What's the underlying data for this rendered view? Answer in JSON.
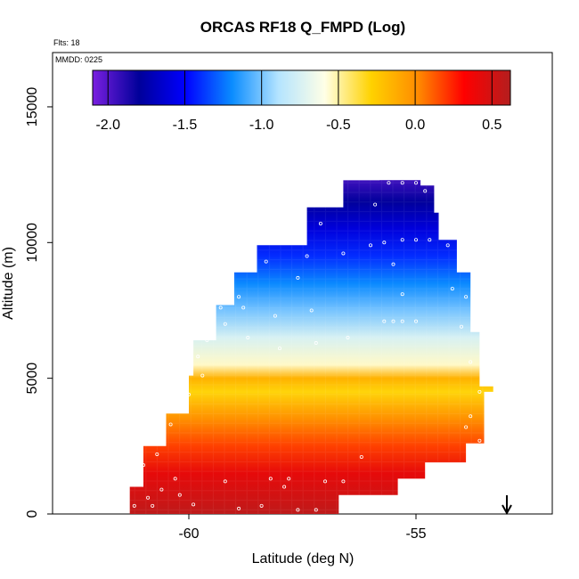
{
  "chart_data": {
    "type": "heatmap",
    "title": "ORCAS RF18 Q_FMPD (Log)",
    "subtitle_flights": "Flts: 18",
    "subtitle_date": "MMDD: 0225",
    "xlabel": "Latitude (deg N)",
    "ylabel": "Altitude (m)",
    "xlim": [
      -63.0,
      -52.0
    ],
    "ylim": [
      0,
      17000
    ],
    "x_ticks": [
      -60,
      -55
    ],
    "x_tick_labels": [
      "-60",
      "-55"
    ],
    "y_ticks": [
      0,
      5000,
      10000,
      15000
    ],
    "y_tick_labels": [
      "0",
      "5000",
      "10000",
      "15000"
    ],
    "colorbar": {
      "range": [
        -2.1,
        0.62
      ],
      "ticks": [
        -2.0,
        -1.5,
        -1.0,
        -0.5,
        0.0,
        0.5
      ],
      "tick_labels": [
        "-2.0",
        "-1.5",
        "-1.0",
        "-0.5",
        "0.0",
        "0.5"
      ],
      "colors": [
        "#7a1fe0",
        "#00009a",
        "#0000ff",
        "#0a8cff",
        "#b4e4ff",
        "#ffffe6",
        "#ffd200",
        "#ff8c00",
        "#ff0000",
        "#b41e1e"
      ]
    },
    "field": {
      "description_levels_altitude_m": [
        0,
        500,
        1500,
        2500,
        3500,
        4500,
        5000,
        5500,
        6500,
        7500,
        8500,
        9500,
        10500,
        11500,
        12300
      ],
      "description_levels_value_log": [
        0.58,
        0.52,
        0.42,
        0.18,
        0.0,
        -0.3,
        -0.15,
        -0.55,
        -0.75,
        -1.0,
        -1.2,
        -1.4,
        -1.6,
        -1.8,
        -1.95
      ]
    },
    "domain_outline_lat_alt": [
      [
        -61.3,
        0
      ],
      [
        -61.3,
        1000
      ],
      [
        -61.0,
        1000
      ],
      [
        -61.0,
        2500
      ],
      [
        -60.5,
        2500
      ],
      [
        -60.5,
        3700
      ],
      [
        -60.0,
        3700
      ],
      [
        -60.0,
        5100
      ],
      [
        -59.9,
        5100
      ],
      [
        -59.9,
        6400
      ],
      [
        -59.4,
        6400
      ],
      [
        -59.4,
        7700
      ],
      [
        -59.0,
        7700
      ],
      [
        -59.0,
        8900
      ],
      [
        -58.5,
        8900
      ],
      [
        -58.5,
        9900
      ],
      [
        -57.4,
        9900
      ],
      [
        -57.4,
        11300
      ],
      [
        -56.6,
        11300
      ],
      [
        -56.6,
        12300
      ],
      [
        -55.8,
        12300
      ],
      [
        -55.8,
        12500
      ],
      [
        -54.9,
        12500
      ],
      [
        -54.9,
        12100
      ],
      [
        -54.6,
        12100
      ],
      [
        -54.6,
        11100
      ],
      [
        -54.5,
        11100
      ],
      [
        -54.5,
        10100
      ],
      [
        -54.1,
        10100
      ],
      [
        -54.1,
        8900
      ],
      [
        -53.8,
        8900
      ],
      [
        -53.8,
        6700
      ],
      [
        -53.6,
        6700
      ],
      [
        -53.6,
        4700
      ],
      [
        -53.3,
        4700
      ],
      [
        -53.3,
        4500
      ],
      [
        -53.5,
        4500
      ],
      [
        -53.5,
        2600
      ],
      [
        -53.9,
        2600
      ],
      [
        -53.9,
        1900
      ],
      [
        -54.8,
        1900
      ],
      [
        -54.8,
        1300
      ],
      [
        -55.4,
        1300
      ],
      [
        -55.4,
        700
      ],
      [
        -56.7,
        700
      ],
      [
        -56.7,
        0
      ]
    ],
    "flight_track_points_lat_alt": [
      [
        -61.2,
        300
      ],
      [
        -60.9,
        600
      ],
      [
        -60.6,
        900
      ],
      [
        -60.3,
        1300
      ],
      [
        -61.0,
        1800
      ],
      [
        -60.7,
        2200
      ],
      [
        -60.6,
        2800
      ],
      [
        -60.4,
        3300
      ],
      [
        -60.2,
        3900
      ],
      [
        -60.0,
        4400
      ],
      [
        -59.7,
        5100
      ],
      [
        -59.8,
        5800
      ],
      [
        -59.6,
        6400
      ],
      [
        -59.2,
        7000
      ],
      [
        -59.3,
        7600
      ],
      [
        -58.8,
        7600
      ],
      [
        -57.3,
        7500
      ],
      [
        -55.5,
        7100
      ],
      [
        -55.3,
        7100
      ],
      [
        -55.0,
        7100
      ],
      [
        -54.0,
        6900
      ],
      [
        -53.6,
        4500
      ],
      [
        -53.8,
        3600
      ],
      [
        -53.6,
        2700
      ],
      [
        -56.2,
        2100
      ],
      [
        -57.8,
        1300
      ],
      [
        -58.2,
        1300
      ],
      [
        -59.2,
        1200
      ],
      [
        -60.2,
        700
      ],
      [
        -60.8,
        300
      ],
      [
        -59.9,
        350
      ],
      [
        -58.9,
        200
      ],
      [
        -58.4,
        300
      ],
      [
        -57.6,
        150
      ],
      [
        -57.2,
        150
      ],
      [
        -56.4,
        150
      ],
      [
        -57.9,
        1000
      ],
      [
        -57.0,
        1200
      ],
      [
        -56.6,
        1200
      ],
      [
        -58.7,
        6500
      ],
      [
        -58.0,
        6100
      ],
      [
        -57.2,
        6300
      ],
      [
        -56.5,
        6500
      ],
      [
        -55.7,
        7100
      ],
      [
        -55.3,
        8100
      ],
      [
        -54.2,
        8300
      ],
      [
        -57.6,
        8700
      ],
      [
        -58.3,
        9300
      ],
      [
        -57.4,
        9500
      ],
      [
        -56.6,
        9600
      ],
      [
        -55.7,
        10000
      ],
      [
        -55.3,
        10100
      ],
      [
        -55.0,
        10100
      ],
      [
        -54.7,
        10100
      ],
      [
        -57.1,
        10700
      ],
      [
        -55.9,
        11400
      ],
      [
        -55.6,
        12200
      ],
      [
        -55.3,
        12200
      ],
      [
        -55.0,
        12200
      ],
      [
        -54.8,
        11900
      ],
      [
        -56.0,
        9900
      ],
      [
        -55.5,
        9200
      ],
      [
        -54.3,
        9900
      ],
      [
        -53.9,
        8000
      ],
      [
        -53.8,
        5600
      ],
      [
        -53.9,
        3200
      ],
      [
        -59.5,
        7500
      ],
      [
        -60.1,
        7100
      ],
      [
        -60.3,
        7600
      ],
      [
        -59.8,
        8400
      ],
      [
        -58.9,
        8000
      ],
      [
        -58.1,
        7300
      ]
    ],
    "arrow_lat": -53.0
  }
}
